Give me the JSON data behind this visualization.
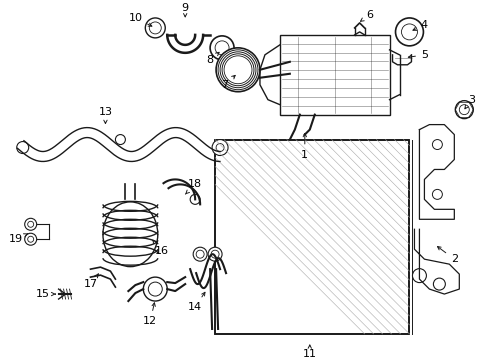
{
  "background_color": "#ffffff",
  "line_color": "#1a1a1a",
  "text_color": "#000000",
  "fig_width": 4.89,
  "fig_height": 3.6,
  "dpi": 100
}
